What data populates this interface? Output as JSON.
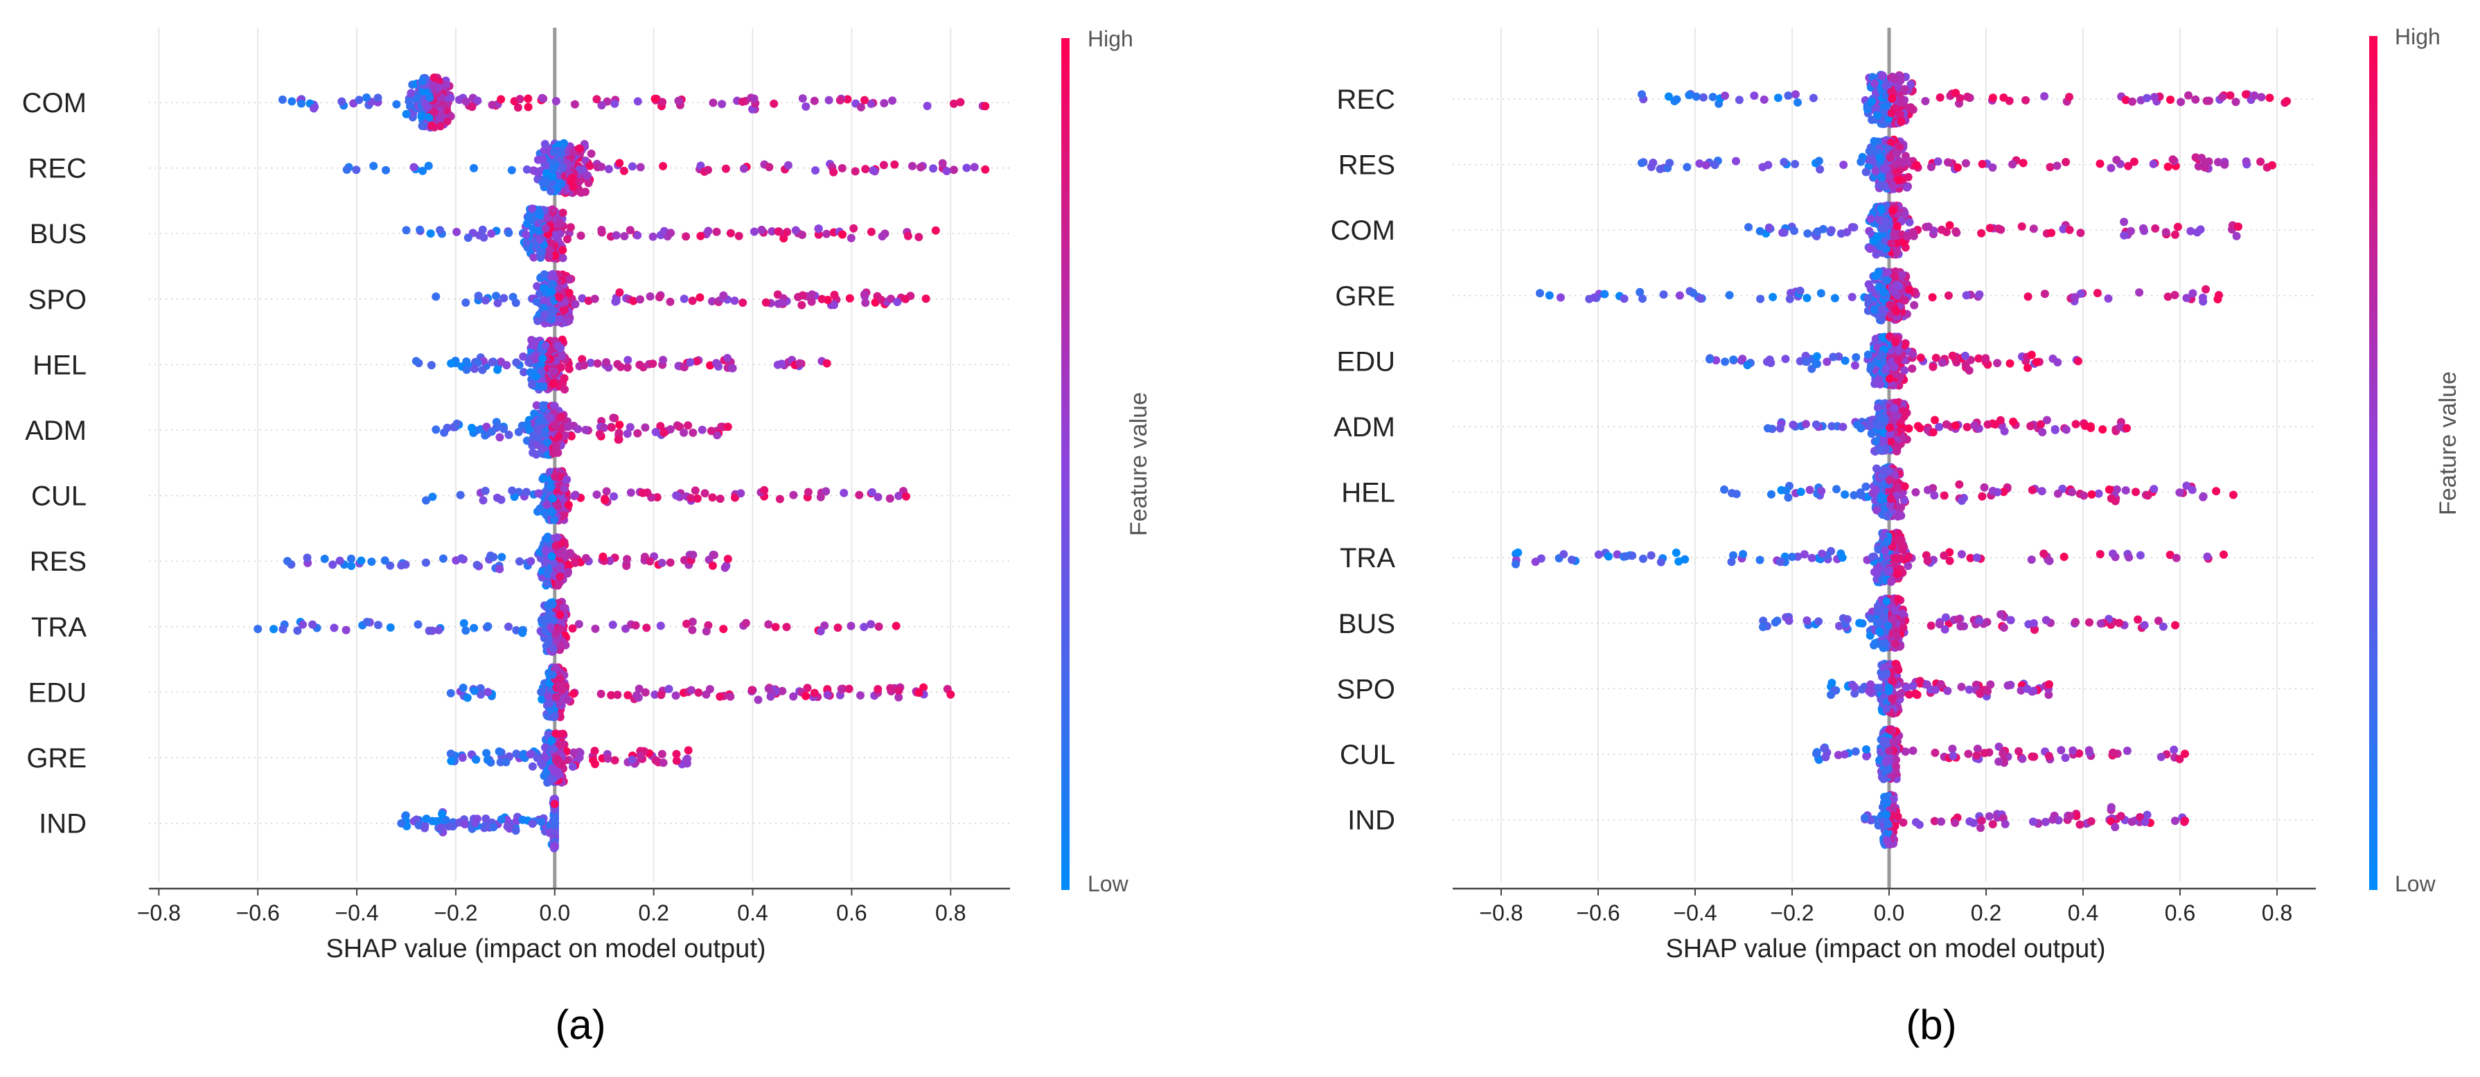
{
  "chart_data": [
    {
      "type": "scatter",
      "subtype": "shap_beeswarm",
      "panel_label": "(a)",
      "xlabel": "SHAP value (impact on model output)",
      "xlim": [
        -0.82,
        0.92
      ],
      "xticks": [
        -0.8,
        -0.6,
        -0.4,
        -0.2,
        0.0,
        0.2,
        0.4,
        0.6,
        0.8
      ],
      "xtick_labels": [
        "−0.8",
        "−0.6",
        "−0.4",
        "−0.2",
        "0.0",
        "0.2",
        "0.4",
        "0.6",
        "0.8"
      ],
      "colorbar": {
        "label": "Feature value",
        "high": "High",
        "low": "Low",
        "colors": [
          "#008bfb",
          "#ff0052"
        ]
      },
      "features": [
        {
          "name": "COM",
          "range": [
            -0.55,
            0.87
          ],
          "center": -0.25,
          "spread": 0.07
        },
        {
          "name": "REC",
          "range": [
            -0.42,
            0.87
          ],
          "center": 0.02,
          "spread": 0.08
        },
        {
          "name": "BUS",
          "range": [
            -0.3,
            0.77
          ],
          "center": -0.02,
          "spread": 0.07
        },
        {
          "name": "SPO",
          "range": [
            -0.24,
            0.75
          ],
          "center": 0.0,
          "spread": 0.06
        },
        {
          "name": "HEL",
          "range": [
            -0.28,
            0.55
          ],
          "center": -0.02,
          "spread": 0.06
        },
        {
          "name": "ADM",
          "range": [
            -0.24,
            0.35
          ],
          "center": -0.01,
          "spread": 0.06
        },
        {
          "name": "CUL",
          "range": [
            -0.26,
            0.71
          ],
          "center": 0.0,
          "spread": 0.04
        },
        {
          "name": "RES",
          "range": [
            -0.54,
            0.35
          ],
          "center": 0.0,
          "spread": 0.05
        },
        {
          "name": "TRA",
          "range": [
            -0.6,
            0.69
          ],
          "center": 0.0,
          "spread": 0.04
        },
        {
          "name": "EDU",
          "range": [
            -0.21,
            0.8
          ],
          "center": 0.0,
          "spread": 0.03
        },
        {
          "name": "GRE",
          "range": [
            -0.21,
            0.27
          ],
          "center": 0.0,
          "spread": 0.03
        },
        {
          "name": "IND",
          "range": [
            -0.31,
            0.0
          ],
          "center": 0.0,
          "spread": 0.005
        }
      ]
    },
    {
      "type": "scatter",
      "subtype": "shap_beeswarm",
      "panel_label": "(b)",
      "xlabel": "SHAP value (impact on model output)",
      "xlim": [
        -0.9,
        0.88
      ],
      "xticks": [
        -0.8,
        -0.6,
        -0.4,
        -0.2,
        0.0,
        0.2,
        0.4,
        0.6,
        0.8
      ],
      "xtick_labels": [
        "−0.8",
        "−0.6",
        "−0.4",
        "−0.2",
        "0.0",
        "0.2",
        "0.4",
        "0.6",
        "0.8"
      ],
      "colorbar": {
        "label": "Feature value",
        "high": "High",
        "low": "Low",
        "colors": [
          "#008bfb",
          "#ff0052"
        ]
      },
      "features": [
        {
          "name": "REC",
          "range": [
            -0.51,
            0.82
          ],
          "center": 0.0,
          "spread": 0.07
        },
        {
          "name": "RES",
          "range": [
            -0.51,
            0.79
          ],
          "center": 0.0,
          "spread": 0.07
        },
        {
          "name": "COM",
          "range": [
            -0.29,
            0.72
          ],
          "center": 0.0,
          "spread": 0.06
        },
        {
          "name": "GRE",
          "range": [
            -0.72,
            0.68
          ],
          "center": 0.0,
          "spread": 0.07
        },
        {
          "name": "EDU",
          "range": [
            -0.37,
            0.39
          ],
          "center": 0.0,
          "spread": 0.06
        },
        {
          "name": "ADM",
          "range": [
            -0.25,
            0.49
          ],
          "center": 0.0,
          "spread": 0.06
        },
        {
          "name": "HEL",
          "range": [
            -0.34,
            0.71
          ],
          "center": 0.0,
          "spread": 0.05
        },
        {
          "name": "TRA",
          "range": [
            -0.77,
            0.69
          ],
          "center": 0.0,
          "spread": 0.05
        },
        {
          "name": "BUS",
          "range": [
            -0.26,
            0.59
          ],
          "center": 0.0,
          "spread": 0.05
        },
        {
          "name": "SPO",
          "range": [
            -0.12,
            0.33
          ],
          "center": 0.0,
          "spread": 0.03
        },
        {
          "name": "CUL",
          "range": [
            -0.15,
            0.61
          ],
          "center": 0.0,
          "spread": 0.03
        },
        {
          "name": "IND",
          "range": [
            -0.05,
            0.61
          ],
          "center": 0.0,
          "spread": 0.02
        }
      ]
    }
  ]
}
